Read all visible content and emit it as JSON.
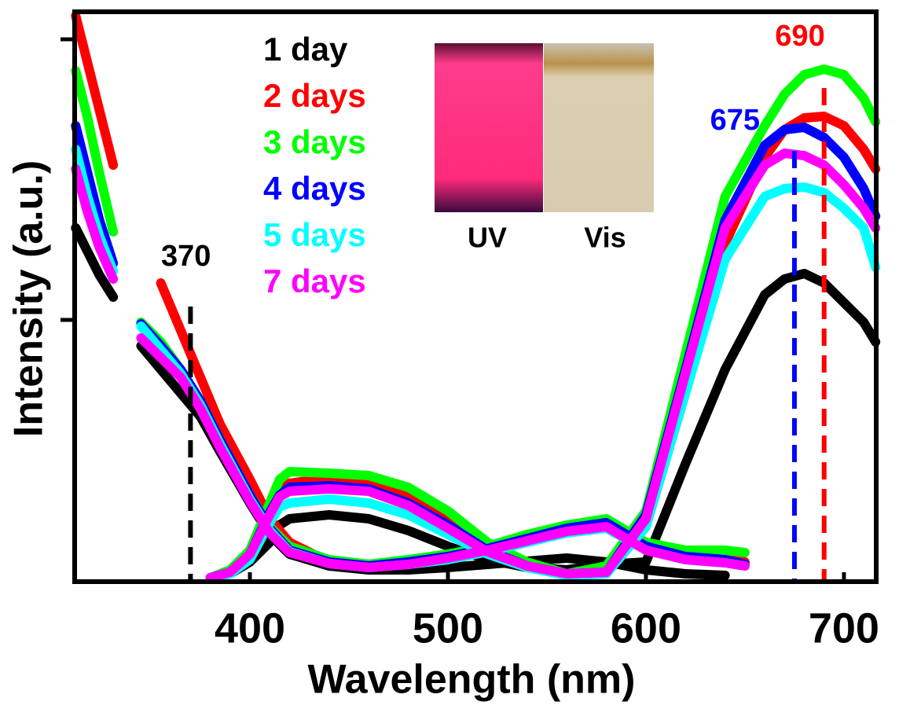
{
  "chart_data": {
    "type": "line",
    "x_label": "Wavelength (nm)",
    "y_label": "Intensity (a.u.)",
    "xlim": [
      311.5,
      716.3
    ],
    "xticks": [
      400,
      500,
      600,
      700
    ],
    "ylim": [
      0,
      725
    ],
    "yticks": [
      333,
      690
    ],
    "x": [
      312,
      318,
      324,
      331,
      338,
      345,
      355,
      365,
      375,
      385,
      400,
      410,
      420,
      440,
      460,
      480,
      500,
      520,
      540,
      560,
      580,
      600,
      620,
      640,
      650
    ],
    "x_emission": [
      380,
      390,
      400,
      410,
      415,
      420,
      440,
      460,
      480,
      500,
      520,
      540,
      560,
      580,
      600,
      620,
      640,
      660,
      670,
      680,
      690,
      700,
      710,
      716
    ],
    "series": [
      {
        "name": "1 day",
        "color": "#000000",
        "values": [
          450,
          420,
          390,
          362,
          null,
          300,
          270,
          240,
          210,
          165,
          100,
          60,
          35,
          20,
          15,
          15,
          18,
          22,
          26,
          30,
          25,
          15,
          10,
          8,
          null
        ],
        "values_emission": [
          5,
          10,
          25,
          50,
          72,
          80,
          85,
          80,
          65,
          45,
          28,
          18,
          15,
          22,
          25,
          150,
          270,
          365,
          385,
          392,
          380,
          355,
          330,
          305
        ]
      },
      {
        "name": "2 days",
        "color": "#ff0000",
        "values": [
          720,
          660,
          600,
          530,
          null,
          null,
          380,
          320,
          260,
          200,
          130,
          80,
          50,
          25,
          20,
          25,
          30,
          40,
          55,
          70,
          75,
          50,
          35,
          28,
          25
        ],
        "values_emission": [
          5,
          12,
          35,
          90,
          115,
          125,
          132,
          128,
          110,
          80,
          45,
          22,
          10,
          10,
          70,
          240,
          430,
          540,
          575,
          590,
          592,
          580,
          550,
          525
        ]
      },
      {
        "name": "3 days",
        "color": "#00ff00",
        "values": [
          650,
          590,
          520,
          445,
          null,
          330,
          305,
          270,
          230,
          180,
          110,
          70,
          45,
          28,
          22,
          28,
          35,
          45,
          60,
          72,
          80,
          50,
          40,
          40,
          37
        ],
        "values_emission": [
          5,
          15,
          40,
          100,
          130,
          140,
          138,
          135,
          120,
          90,
          50,
          25,
          10,
          20,
          90,
          290,
          490,
          580,
          620,
          645,
          652,
          645,
          615,
          585
        ]
      },
      {
        "name": "4 days",
        "color": "#0000ff",
        "values": [
          580,
          520,
          460,
          405,
          null,
          328,
          300,
          270,
          230,
          180,
          110,
          68,
          40,
          25,
          20,
          25,
          32,
          42,
          55,
          68,
          75,
          45,
          32,
          28,
          22
        ],
        "values_emission": [
          5,
          12,
          35,
          88,
          110,
          120,
          122,
          118,
          100,
          72,
          40,
          20,
          10,
          12,
          85,
          270,
          460,
          555,
          575,
          578,
          565,
          540,
          500,
          465
        ]
      },
      {
        "name": "5 days",
        "color": "#00ffff",
        "values": [
          550,
          490,
          440,
          395,
          null,
          325,
          295,
          265,
          225,
          175,
          105,
          65,
          38,
          23,
          18,
          22,
          28,
          38,
          50,
          62,
          68,
          40,
          28,
          24,
          20
        ],
        "values_emission": [
          5,
          10,
          28,
          75,
          95,
          100,
          105,
          100,
          85,
          60,
          35,
          18,
          8,
          10,
          70,
          240,
          410,
          490,
          500,
          502,
          495,
          475,
          450,
          400
        ]
      },
      {
        "name": "7 days",
        "color": "#ff00ff",
        "values": [
          525,
          470,
          425,
          385,
          null,
          310,
          285,
          260,
          220,
          170,
          102,
          62,
          37,
          23,
          18,
          22,
          30,
          40,
          52,
          64,
          70,
          40,
          28,
          24,
          20
        ],
        "values_emission": [
          5,
          12,
          35,
          85,
          108,
          115,
          118,
          115,
          97,
          68,
          38,
          20,
          10,
          12,
          80,
          265,
          450,
          530,
          545,
          542,
          530,
          505,
          475,
          450
        ]
      }
    ],
    "annotations": [
      {
        "x": 370,
        "color": "#000000"
      },
      {
        "x": 675,
        "color": "#0000ff"
      },
      {
        "x": 690,
        "color": "#ff0000"
      }
    ],
    "inset": {
      "labels": [
        "UV",
        "Vis"
      ]
    }
  }
}
